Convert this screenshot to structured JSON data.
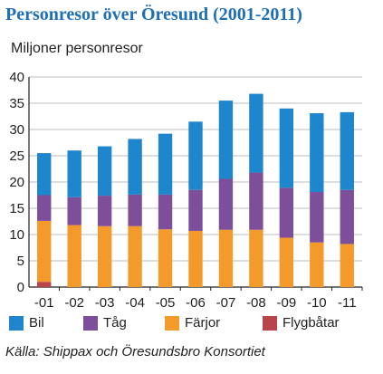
{
  "chart_data": {
    "type": "bar",
    "stacked": true,
    "title": "Personresor över Öresund (2001-2011)",
    "ylabel": "Miljoner personresor",
    "xlabel": "",
    "ylim": [
      0,
      40
    ],
    "yticks": [
      0,
      5,
      10,
      15,
      20,
      25,
      30,
      35,
      40
    ],
    "grid": true,
    "legend_position": "bottom",
    "categories": [
      "-01",
      "-02",
      "-03",
      "-04",
      "-05",
      "-06",
      "-07",
      "-08",
      "-09",
      "-10",
      "-11"
    ],
    "series": [
      {
        "name": "Flygbåtar",
        "color": "#b8454a",
        "values": [
          1.0,
          0,
          0,
          0,
          0,
          0,
          0,
          0,
          0,
          0,
          0
        ]
      },
      {
        "name": "Färjor",
        "color": "#f39a2b",
        "values": [
          11.6,
          11.8,
          11.6,
          11.6,
          11.0,
          10.7,
          10.9,
          10.9,
          9.4,
          8.5,
          8.2
        ]
      },
      {
        "name": "Tåg",
        "color": "#7d4f9a",
        "values": [
          4.9,
          5.3,
          5.8,
          6.0,
          6.6,
          7.8,
          9.7,
          10.9,
          9.5,
          9.6,
          10.3
        ]
      },
      {
        "name": "Bil",
        "color": "#1e86cc",
        "values": [
          8.0,
          8.9,
          9.4,
          10.6,
          11.6,
          13.0,
          14.9,
          15.0,
          15.1,
          15.0,
          14.8
        ]
      }
    ],
    "legend_order": [
      "Bil",
      "Tåg",
      "Färjor",
      "Flygbåtar"
    ],
    "source": "Källa: Shippax och Öresundsbro Konsortiet"
  }
}
